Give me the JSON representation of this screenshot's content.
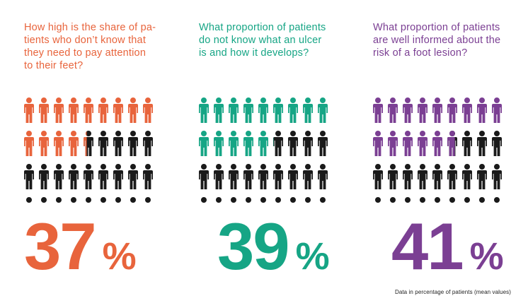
{
  "chart_data": [
    {
      "type": "pictogram",
      "question": "How high is the share of pa-\ntients who don’t know that\nthey need to pay attention\nto their feet?",
      "value": 37,
      "value_label": "37",
      "unit_label": "%",
      "total_icons": 30,
      "icons_per_row": 9,
      "color": "#e8643c"
    },
    {
      "type": "pictogram",
      "question": "What proportion of patients\ndo not know what an ulcer\nis and how it develops?",
      "value": 39,
      "value_label": "39",
      "unit_label": "%",
      "total_icons": 30,
      "icons_per_row": 9,
      "color": "#16a585"
    },
    {
      "type": "pictogram",
      "question": "What proportion of patients\nare well informed about the\nrisk of a foot lesion?",
      "value": 41,
      "value_label": "41",
      "unit_label": "%",
      "total_icons": 30,
      "icons_per_row": 9,
      "color": "#7b3f93"
    }
  ],
  "inactive_color": "#1a1a1a",
  "footnote": "Data in percentage of patients (mean values)"
}
